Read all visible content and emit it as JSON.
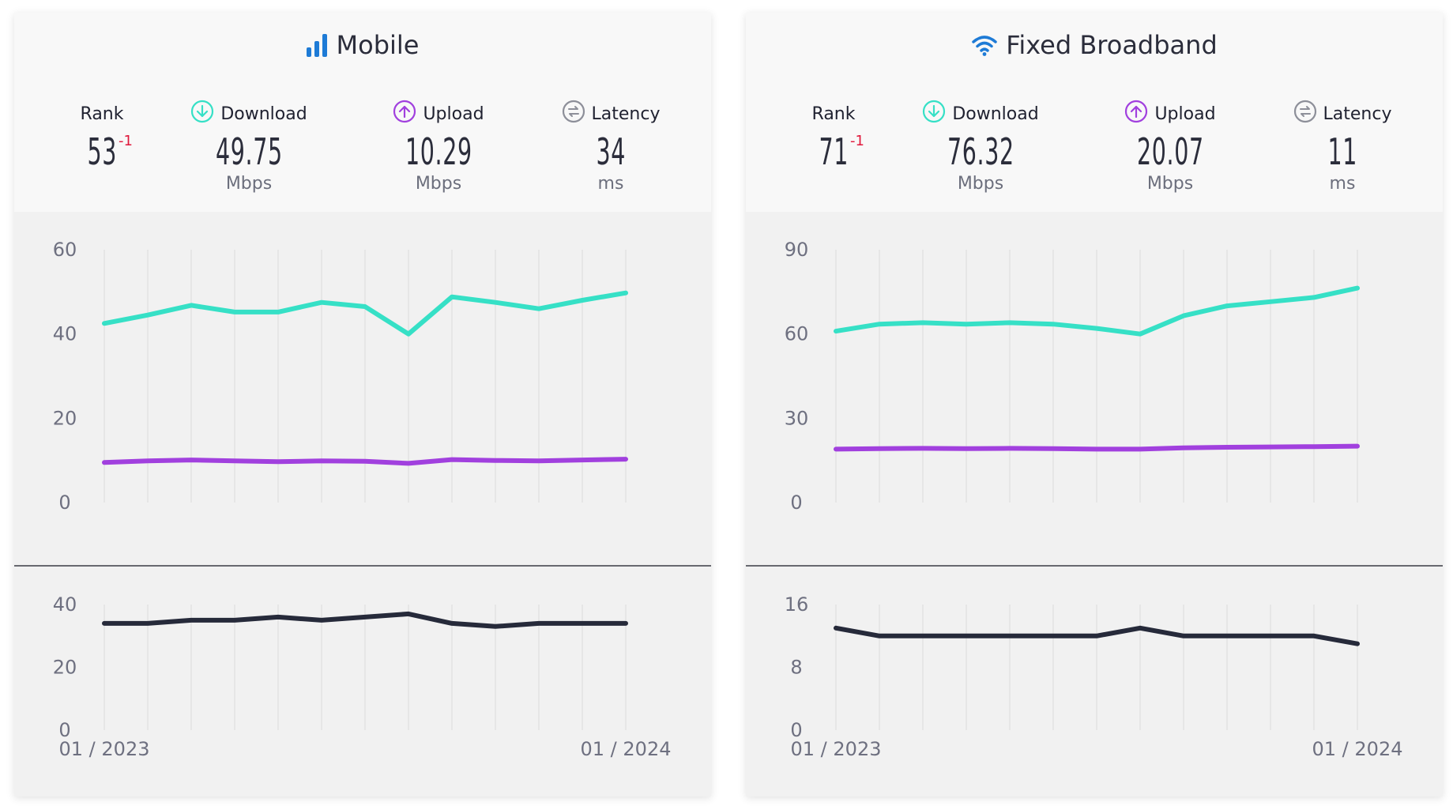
{
  "colors": {
    "download": "#36e0c6",
    "upload": "#a140de",
    "latency": "#262a3a",
    "rank_change": "#e0193c",
    "mobile_icon": "#1e7bd6"
  },
  "panels": [
    {
      "title": "Mobile",
      "icon": "signal-bars-icon",
      "rank_label": "Rank",
      "rank_value": "53",
      "rank_change": "-1",
      "download_label": "Download",
      "download_value": "49.75",
      "download_unit": "Mbps",
      "upload_label": "Upload",
      "upload_value": "10.29",
      "upload_unit": "Mbps",
      "latency_label": "Latency",
      "latency_value": "34",
      "latency_unit": "ms"
    },
    {
      "title": "Fixed Broadband",
      "icon": "wifi-icon",
      "rank_label": "Rank",
      "rank_value": "71",
      "rank_change": "-1",
      "download_label": "Download",
      "download_value": "76.32",
      "download_unit": "Mbps",
      "upload_label": "Upload",
      "upload_value": "20.07",
      "upload_unit": "Mbps",
      "latency_label": "Latency",
      "latency_value": "11",
      "latency_unit": "ms"
    }
  ],
  "chart_data": [
    {
      "type": "line",
      "x_start_label": "01 / 2023",
      "x_end_label": "01 / 2024",
      "speed": {
        "ylim": [
          0,
          60
        ],
        "yticks": [
          0,
          20,
          40,
          60
        ],
        "series": [
          {
            "name": "Download",
            "values": [
              42.5,
              44.5,
              46.8,
              45.2,
              45.2,
              47.5,
              46.5,
              40.0,
              48.8,
              47.5,
              46.0,
              48.0,
              49.75
            ]
          },
          {
            "name": "Upload",
            "values": [
              9.5,
              9.9,
              10.1,
              9.9,
              9.7,
              9.9,
              9.8,
              9.3,
              10.2,
              10.0,
              9.9,
              10.1,
              10.29
            ]
          }
        ]
      },
      "latency": {
        "ylim": [
          0,
          40
        ],
        "yticks": [
          0,
          20,
          40
        ],
        "series": [
          {
            "name": "Latency",
            "values": [
              34,
              34,
              35,
              35,
              36,
              35,
              36,
              37,
              34,
              33,
              34,
              34,
              34
            ]
          }
        ]
      }
    },
    {
      "type": "line",
      "x_start_label": "01 / 2023",
      "x_end_label": "01 / 2024",
      "speed": {
        "ylim": [
          0,
          90
        ],
        "yticks": [
          0,
          30,
          60,
          90
        ],
        "series": [
          {
            "name": "Download",
            "values": [
              61.0,
              63.5,
              64.0,
              63.5,
              64.0,
              63.5,
              62.0,
              60.0,
              66.5,
              70.0,
              71.5,
              73.0,
              76.32
            ]
          },
          {
            "name": "Upload",
            "values": [
              19.0,
              19.2,
              19.3,
              19.2,
              19.3,
              19.2,
              19.0,
              19.0,
              19.5,
              19.7,
              19.8,
              19.9,
              20.07
            ]
          }
        ]
      },
      "latency": {
        "ylim": [
          0,
          16
        ],
        "yticks": [
          0,
          8,
          16
        ],
        "series": [
          {
            "name": "Latency",
            "values": [
              13,
              12,
              12,
              12,
              12,
              12,
              12,
              13,
              12,
              12,
              12,
              12,
              11
            ]
          }
        ]
      }
    }
  ]
}
